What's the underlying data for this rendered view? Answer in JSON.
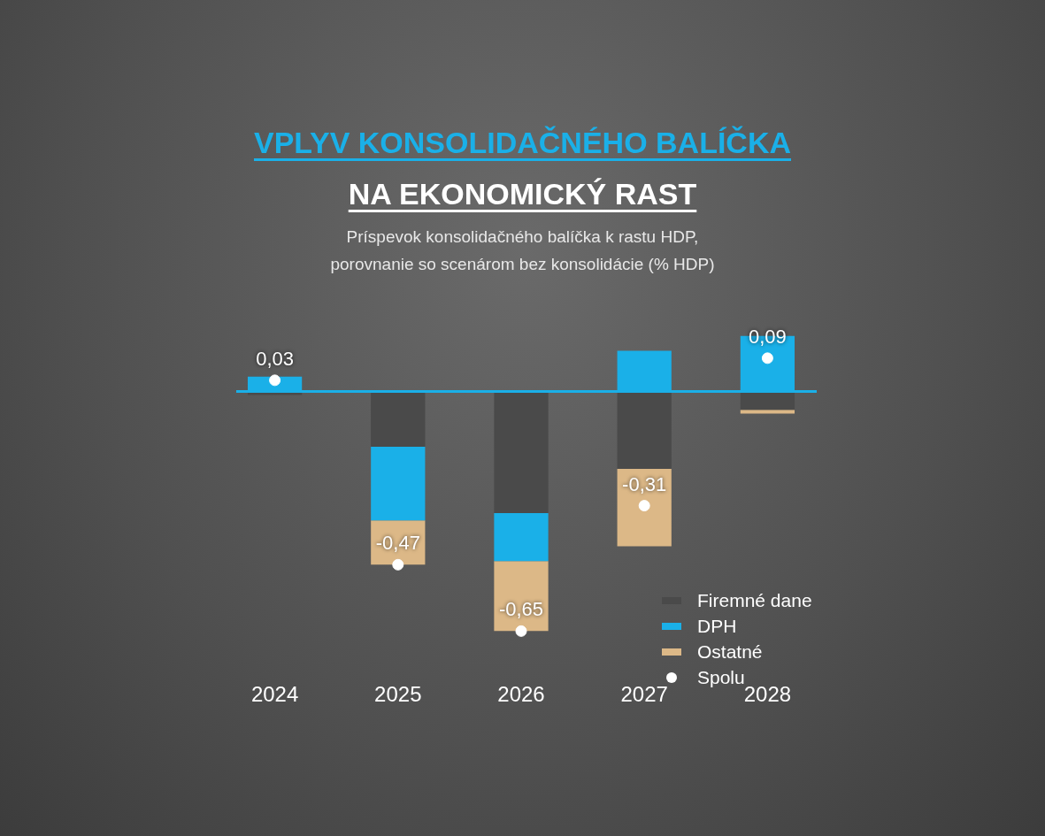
{
  "chart_data": {
    "type": "bar",
    "title": "VPLYV KONSOLIDAČNÉHO BALÍČKA\nNA EKONOMICKÝ RAST",
    "subtitle": "Príspevok konsolidačného balíčka k rastu HDP,\nporovnanie so scenárom bez konsolidácie (% HDP)",
    "categories": [
      "2024",
      "2025",
      "2026",
      "2027",
      "2028"
    ],
    "stacked": true,
    "series": [
      {
        "name": "Firemné dane",
        "color": "#4a4a4a",
        "values": [
          -0.01,
          -0.15,
          -0.33,
          -0.21,
          -0.05
        ]
      },
      {
        "name": "DPH",
        "color": "#1ab0e8",
        "values": [
          0.04,
          -0.2,
          -0.13,
          0.11,
          0.15
        ]
      },
      {
        "name": "Ostatné",
        "color": "#dcb887",
        "values": [
          0,
          -0.12,
          -0.19,
          -0.21,
          -0.01
        ]
      },
      {
        "name": "Spolu",
        "type": "scatter",
        "color": "#ffffff",
        "values": [
          0.03,
          -0.47,
          -0.65,
          -0.31,
          0.09
        ],
        "value_labels": [
          "0,03",
          "-0,47",
          "-0,65",
          "-0,31",
          "0,09"
        ]
      }
    ],
    "tick_labels": "x",
    "grid": false,
    "legend": "bottom right",
    "marker": "circle",
    "ref_lines": [
      {
        "axis": "y",
        "value": 0,
        "color": "#1ab0e8"
      }
    ]
  }
}
